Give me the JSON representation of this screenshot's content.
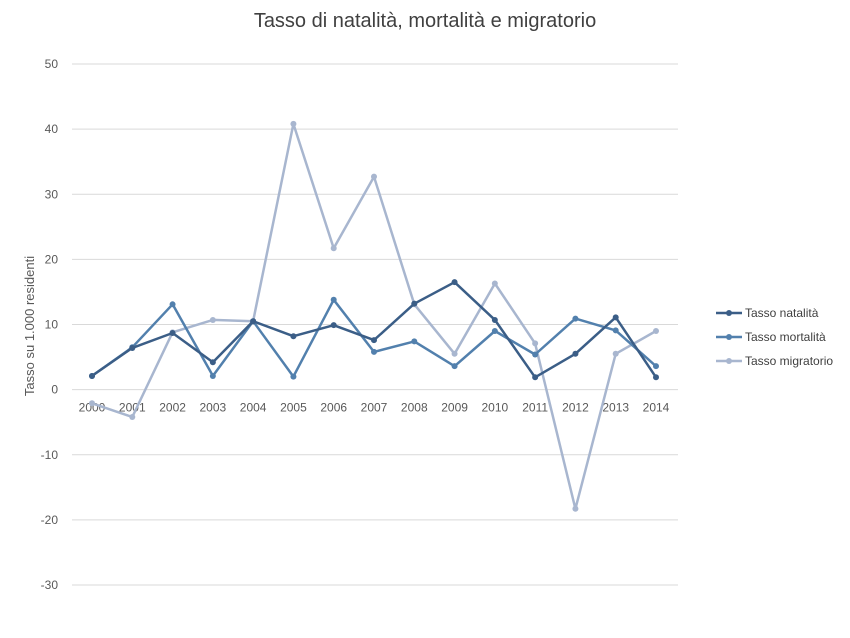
{
  "chart_data": {
    "type": "line",
    "title": "Tasso di natalità, mortalità e migratorio",
    "xlabel": "",
    "ylabel": "Tasso su 1.000 residenti",
    "ylim": [
      -30,
      50
    ],
    "yticks": [
      -30,
      -20,
      -10,
      0,
      10,
      20,
      30,
      40,
      50
    ],
    "grid": true,
    "legend_position": "right",
    "categories": [
      "2000",
      "2001",
      "2002",
      "2003",
      "2004",
      "2005",
      "2006",
      "2007",
      "2008",
      "2009",
      "2010",
      "2011",
      "2012",
      "2013",
      "2014"
    ],
    "series": [
      {
        "name": "Tasso natalità",
        "color": "#3b5e87",
        "values": [
          2.1,
          6.4,
          8.7,
          4.2,
          10.5,
          8.2,
          9.9,
          7.6,
          13.2,
          16.5,
          10.7,
          1.9,
          5.5,
          11.1,
          1.9
        ]
      },
      {
        "name": "Tasso mortalità",
        "color": "#5280ad",
        "values": [
          2.1,
          6.5,
          13.1,
          2.1,
          10.5,
          2.0,
          13.8,
          5.8,
          7.4,
          3.6,
          9.0,
          5.4,
          10.9,
          9.1,
          3.6
        ]
      },
      {
        "name": "Tasso migratorio",
        "color": "#a8b6cf",
        "values": [
          -2.1,
          -4.2,
          8.8,
          10.7,
          10.5,
          40.8,
          21.7,
          32.7,
          13.1,
          5.5,
          16.3,
          7.1,
          -18.3,
          5.5,
          9.0
        ]
      }
    ]
  }
}
